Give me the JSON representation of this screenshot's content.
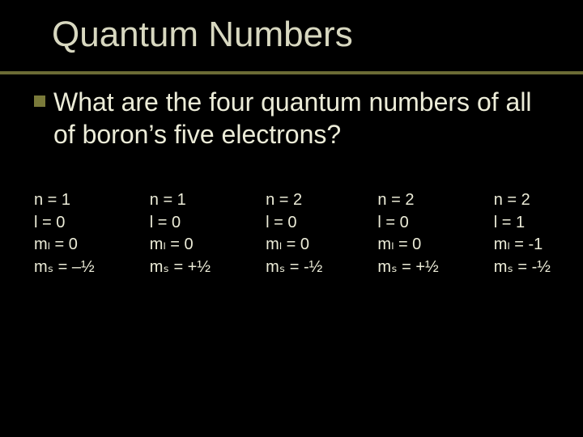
{
  "background_color": "#000000",
  "text_color": "#ececd8",
  "title_color": "#d8d8c0",
  "divider_color": "#6b6b35",
  "bullet_color": "#7a7a3a",
  "title_fontsize": 44,
  "body_fontsize": 32,
  "column_fontsize": 20,
  "title": "Quantum Numbers",
  "question": "What are the four quantum numbers of all of boron’s five electrons?",
  "electrons": [
    {
      "n": "n = 1",
      "l": "l = 0",
      "ml": "mₗ = 0",
      "ms": "mₛ = –½"
    },
    {
      "n": "n = 1",
      "l": "l = 0",
      "ml": "mₗ = 0",
      "ms": "mₛ = +½"
    },
    {
      "n": "n = 2",
      "l": "l = 0",
      "ml": "mₗ = 0",
      "ms": "mₛ = -½"
    },
    {
      "n": "n = 2",
      "l": "l = 0",
      "ml": "mₗ = 0",
      "ms": "mₛ = +½"
    },
    {
      "n": "n = 2",
      "l": "l = 1",
      "ml": "mₗ = -1",
      "ms": "mₛ = -½"
    }
  ]
}
